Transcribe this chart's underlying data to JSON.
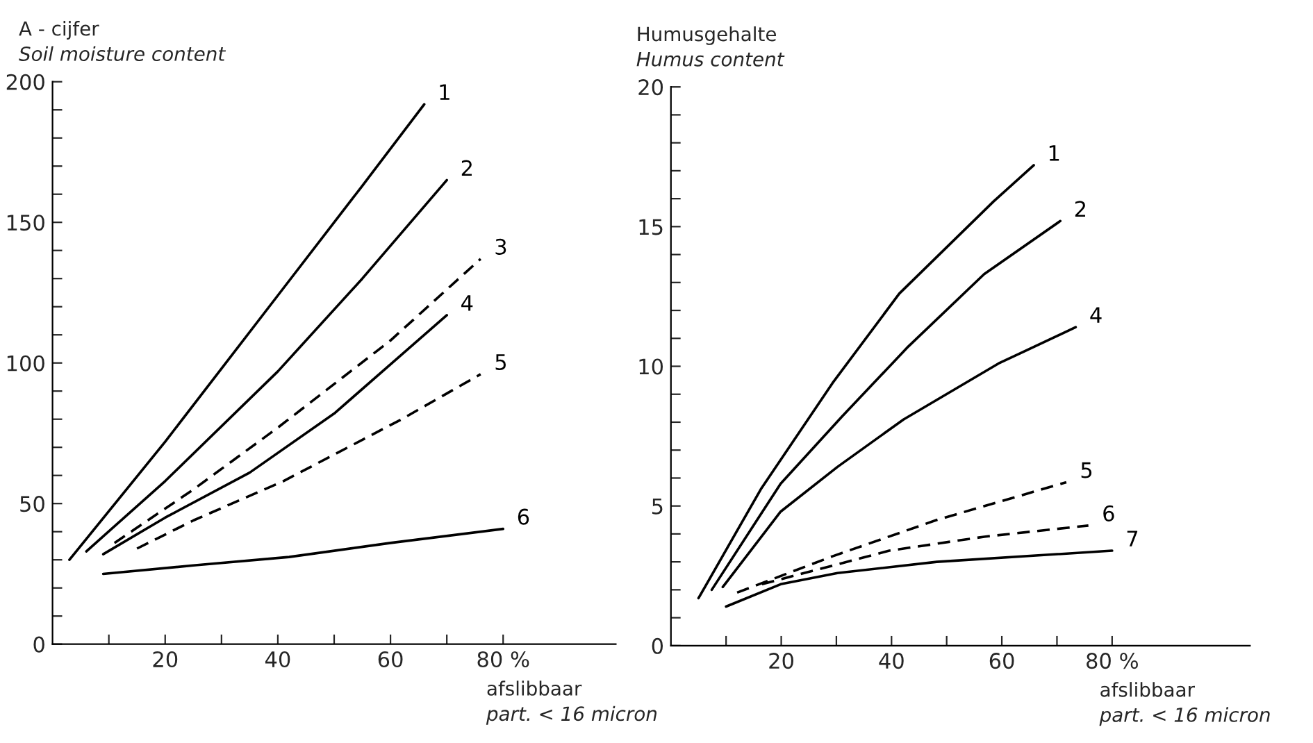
{
  "chart_data": [
    {
      "type": "line",
      "title": "A - cijfer\nSoil moisture content",
      "xlabel": "afslibbaar\npart. < 16 micron",
      "xlim": [
        0,
        100
      ],
      "xticks": [
        {
          "value": 10,
          "label": null
        },
        20,
        {
          "value": 30,
          "label": null
        },
        40,
        {
          "value": 50,
          "label": null
        },
        60,
        {
          "value": 70,
          "label": null
        },
        {
          "value": 80,
          "label": "80 %"
        }
      ],
      "ylim": [
        0,
        200
      ],
      "yticks": [
        0,
        {
          "value": 10,
          "label": null
        },
        {
          "value": 20,
          "label": null
        },
        {
          "value": 30,
          "label": null
        },
        {
          "value": 40,
          "label": null
        },
        50,
        {
          "value": 60,
          "label": null
        },
        {
          "value": 70,
          "label": null
        },
        {
          "value": 80,
          "label": null
        },
        {
          "value": 90,
          "label": null
        },
        100,
        {
          "value": 110,
          "label": null
        },
        {
          "value": 120,
          "label": null
        },
        {
          "value": 130,
          "label": null
        },
        {
          "value": 140,
          "label": null
        },
        150,
        {
          "value": 160,
          "label": null
        },
        {
          "value": 170,
          "label": null
        },
        {
          "value": 180,
          "label": null
        },
        {
          "value": 190,
          "label": null
        },
        200
      ],
      "grid": false,
      "legend": false,
      "series": [
        {
          "name": "1",
          "color": "#000000",
          "line_style": "solid",
          "x": [
            3,
            20,
            40,
            55,
            66
          ],
          "values": [
            30,
            72,
            124,
            163,
            192
          ]
        },
        {
          "name": "2",
          "color": "#000000",
          "line_style": "solid",
          "x": [
            6,
            20,
            40,
            55,
            70
          ],
          "values": [
            33,
            58,
            97,
            130,
            165
          ]
        },
        {
          "name": "3",
          "color": "#000000",
          "line_style": "dashed",
          "x": [
            11,
            25,
            40,
            60,
            76
          ],
          "values": [
            36,
            55,
            77,
            108,
            137
          ]
        },
        {
          "name": "4",
          "color": "#000000",
          "line_style": "solid",
          "x": [
            9,
            20,
            35,
            50,
            70
          ],
          "values": [
            32,
            45,
            61,
            82,
            117
          ]
        },
        {
          "name": "5",
          "color": "#000000",
          "line_style": "dashed",
          "x": [
            15,
            25,
            41,
            62,
            76
          ],
          "values": [
            34,
            44,
            58,
            80,
            96
          ]
        },
        {
          "name": "6",
          "color": "#000000",
          "line_style": "solid",
          "x": [
            9,
            25,
            42,
            60,
            80
          ],
          "values": [
            25,
            28,
            31,
            36,
            41
          ]
        }
      ]
    },
    {
      "type": "line",
      "title": "Humusgehalte\nHumus content",
      "xlabel": "afslibbaar\npart. < 16 micron",
      "xlim": [
        0,
        105
      ],
      "xticks": [
        {
          "value": 10,
          "label": null
        },
        20,
        {
          "value": 30,
          "label": null
        },
        40,
        {
          "value": 50,
          "label": null
        },
        60,
        {
          "value": 70,
          "label": null
        },
        {
          "value": 80,
          "label": "80 %"
        }
      ],
      "ylim": [
        0,
        20
      ],
      "yticks": [
        0,
        {
          "value": 1,
          "label": null
        },
        {
          "value": 2,
          "label": null
        },
        {
          "value": 3,
          "label": null
        },
        {
          "value": 4,
          "label": null
        },
        5,
        {
          "value": 6,
          "label": null
        },
        {
          "value": 7,
          "label": null
        },
        {
          "value": 8,
          "label": null
        },
        {
          "value": 9,
          "label": null
        },
        10,
        {
          "value": 11,
          "label": null
        },
        {
          "value": 12,
          "label": null
        },
        {
          "value": 13,
          "label": null
        },
        {
          "value": 14,
          "label": null
        },
        15,
        {
          "value": 16,
          "label": null
        },
        {
          "value": 17,
          "label": null
        },
        {
          "value": 18,
          "label": null
        },
        {
          "value": 19,
          "label": null
        },
        20
      ],
      "grid": false,
      "legend": false,
      "series": [
        {
          "name": "1",
          "color": "#000000",
          "line_style": "solid",
          "x": [
            5,
            16.3,
            29.3,
            41.4,
            58.5,
            65.8
          ],
          "values": [
            1.7,
            5.6,
            9.4,
            12.6,
            15.9,
            17.2
          ]
        },
        {
          "name": "2",
          "color": "#000000",
          "line_style": "solid",
          "x": [
            7.4,
            19.9,
            31,
            43,
            56.8,
            70.6
          ],
          "values": [
            2.0,
            5.8,
            8.2,
            10.7,
            13.3,
            15.2
          ]
        },
        {
          "name": "4",
          "color": "#000000",
          "line_style": "solid",
          "x": [
            9.4,
            19.9,
            30.2,
            42.2,
            59.4,
            73.4
          ],
          "values": [
            2.1,
            4.8,
            6.4,
            8.1,
            10.1,
            11.4
          ]
        },
        {
          "name": "5",
          "color": "#000000",
          "line_style": "dashed",
          "x": [
            12,
            29.3,
            48.2,
            71.7
          ],
          "values": [
            1.9,
            3.2,
            4.5,
            5.85
          ]
        },
        {
          "name": "6",
          "color": "#000000",
          "line_style": "dashed",
          "x": [
            16.5,
            39.6,
            56.8,
            75.7
          ],
          "values": [
            2.2,
            3.4,
            3.9,
            4.3
          ]
        },
        {
          "name": "7",
          "color": "#000000",
          "line_style": "solid",
          "x": [
            10,
            19.9,
            30.2,
            48.2,
            80
          ],
          "values": [
            1.4,
            2.2,
            2.6,
            3.0,
            3.4
          ]
        }
      ]
    }
  ]
}
